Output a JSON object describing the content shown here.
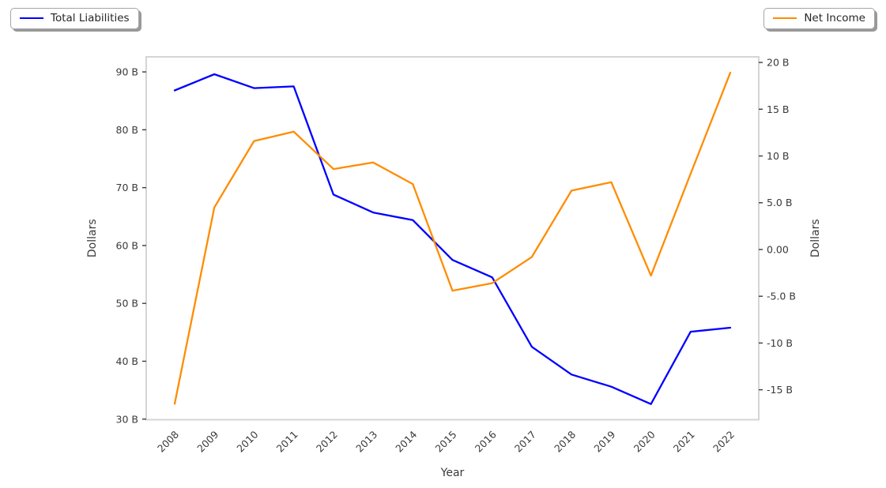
{
  "legend_left": {
    "label": "Total Liabilities"
  },
  "legend_right": {
    "label": "Net Income"
  },
  "colors": {
    "total_liabilities": "#0000ff",
    "net_income": "#ff8c00",
    "tick_text": "#3a3a3a",
    "plot_border": "#d5d5d5",
    "tick_mark": "#3b3b3b"
  },
  "chart_data": {
    "type": "line",
    "title": "",
    "xlabel": "Year",
    "ylabel_left": "Dollars",
    "ylabel_right": "Dollars",
    "grid": false,
    "legend_position": {
      "total_liabilities": "top-left-outside",
      "net_income": "top-right-outside"
    },
    "categories": [
      "2008",
      "2009",
      "2010",
      "2011",
      "2012",
      "2013",
      "2014",
      "2015",
      "2016",
      "2017",
      "2018",
      "2019",
      "2020",
      "2021",
      "2022"
    ],
    "series": [
      {
        "name": "Total Liabilities",
        "axis": "left",
        "color": "#0000ff",
        "unit": "B",
        "values": [
          86.8,
          89.6,
          87.2,
          87.5,
          68.8,
          65.7,
          64.4,
          57.5,
          54.5,
          42.5,
          37.7,
          35.6,
          32.6,
          45.1,
          45.8
        ]
      },
      {
        "name": "Net Income",
        "axis": "right",
        "color": "#ff8c00",
        "unit": "B",
        "values": [
          -16.5,
          4.5,
          11.6,
          12.6,
          8.6,
          9.3,
          7.0,
          -4.4,
          -3.6,
          -0.8,
          6.3,
          7.2,
          -2.8,
          8.1,
          18.9
        ]
      }
    ],
    "left_axis": {
      "label": "Dollars",
      "ticks": [
        90,
        80,
        70,
        60,
        50,
        40,
        30
      ],
      "tick_labels": [
        "90 B",
        "80 B",
        "70 B",
        "60 B",
        "50 B",
        "40 B",
        "30 B"
      ],
      "range": [
        29.9,
        92.6
      ]
    },
    "right_axis": {
      "label": "Dollars",
      "ticks": [
        20,
        15,
        10,
        5,
        0,
        -5,
        -10,
        -15
      ],
      "tick_labels": [
        "20 B",
        "15 B",
        "10 B",
        "5.0 B",
        "0.00",
        "-5.0 B",
        "-10 B",
        "-15 B"
      ],
      "range": [
        -18.2,
        20.6
      ]
    }
  }
}
